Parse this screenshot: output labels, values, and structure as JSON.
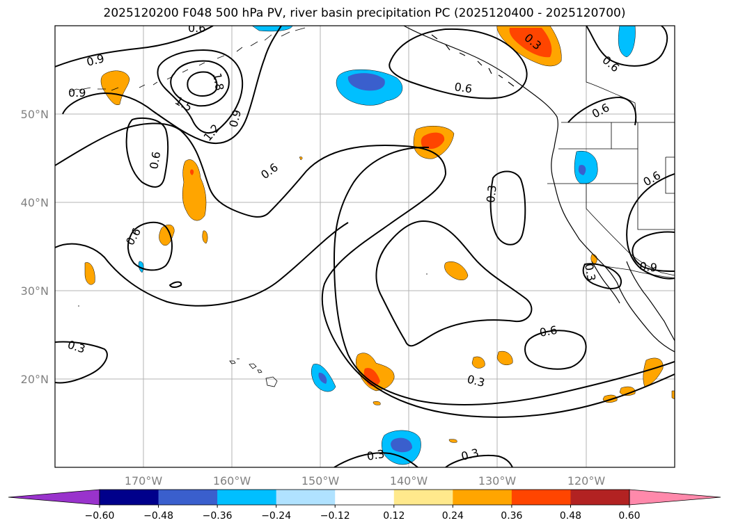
{
  "title": "2025120200 F048 500 hPa PV, river basin precipitation PC (2025120400 - 2025120700)",
  "map": {
    "projection": "equirectangular",
    "lon_range": [
      -180,
      -110
    ],
    "lat_range": [
      10,
      60
    ],
    "gridlines": true,
    "lon_ticks": [
      "170°W",
      "160°W",
      "150°W",
      "140°W",
      "130°W",
      "120°W"
    ],
    "lat_ticks": [
      "50°N",
      "40°N",
      "30°N",
      "20°N"
    ],
    "coastlines": true,
    "state_borders": true
  },
  "colorbar": {
    "orientation": "horizontal",
    "extend": "both",
    "levels": [
      -0.6,
      -0.48,
      -0.36,
      -0.24,
      -0.12,
      0.12,
      0.24,
      0.36,
      0.48,
      0.6
    ],
    "tick_labels": [
      "−0.60",
      "−0.48",
      "−0.36",
      "−0.24",
      "−0.12",
      "0.12",
      "0.24",
      "0.36",
      "0.48",
      "0.60"
    ],
    "colors": [
      "#9933cc",
      "#00008b",
      "#3a5fcd",
      "#00bfff",
      "#b0e2ff",
      "#ffffff",
      "#ffe98c",
      "#ffa500",
      "#ff4500",
      "#b22222",
      "#ff89ab"
    ]
  },
  "contours": {
    "field": "500 hPa PV",
    "labels": [
      "0.3",
      "0.6",
      "0.9",
      "1.2",
      "1.5",
      "1.8"
    ]
  },
  "chart_data": {
    "type": "heatmap",
    "title": "2025120200 F048 500 hPa PV, river basin precipitation PC (2025120400 - 2025120700)",
    "x_range_deg": [
      -180,
      -110
    ],
    "y_range_deg": [
      10,
      60
    ],
    "contour_levels": [
      0.3,
      0.6,
      0.9,
      1.2,
      1.5,
      1.8
    ],
    "fill_levels": [
      -0.6,
      -0.48,
      -0.36,
      -0.24,
      -0.12,
      0.12,
      0.24,
      0.36,
      0.48,
      0.6
    ]
  }
}
